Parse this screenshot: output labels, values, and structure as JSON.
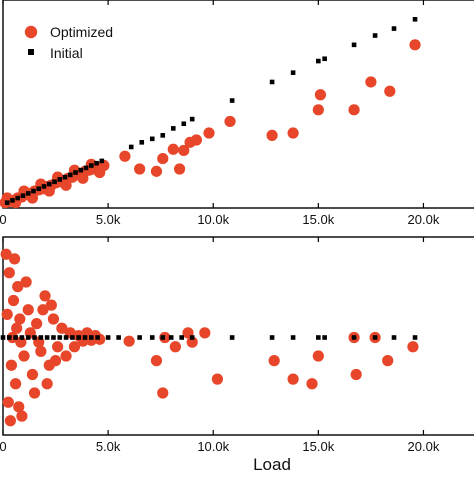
{
  "chart_data": [
    {
      "type": "scatter",
      "xlabel": "",
      "ylabel": "",
      "xlim": [
        0,
        22500
      ],
      "ylim": [
        0,
        1.2
      ],
      "xticks": [
        0,
        5000,
        10000,
        15000,
        20000
      ],
      "xtick_labels": [
        "0",
        "5.0k",
        "10.0k",
        "15.0k",
        "20.0k"
      ],
      "grid": false,
      "legend": {
        "placement": "top-left",
        "entries": [
          "Optimized",
          "Initial"
        ]
      },
      "colors": {
        "optimized": "#e8462a",
        "initial": "#000000"
      },
      "series": [
        {
          "name": "Optimized",
          "marker": "circle",
          "points": [
            [
              100,
              0.01
            ],
            [
              300,
              0.015
            ],
            [
              500,
              0.02
            ],
            [
              700,
              0.03
            ],
            [
              900,
              0.035
            ],
            [
              1100,
              0.045
            ],
            [
              1300,
              0.05
            ],
            [
              1500,
              0.06
            ],
            [
              1700,
              0.065
            ],
            [
              1900,
              0.07
            ],
            [
              2100,
              0.08
            ],
            [
              2300,
              0.085
            ],
            [
              2500,
              0.095
            ],
            [
              2700,
              0.1
            ],
            [
              2900,
              0.105
            ],
            [
              3100,
              0.115
            ],
            [
              3300,
              0.12
            ],
            [
              3500,
              0.13
            ],
            [
              3700,
              0.135
            ],
            [
              3900,
              0.145
            ],
            [
              4100,
              0.15
            ],
            [
              4300,
              0.155
            ],
            [
              4500,
              0.165
            ],
            [
              200,
              0.03
            ],
            [
              600,
              0.01
            ],
            [
              1000,
              0.06
            ],
            [
              1400,
              0.03
            ],
            [
              1800,
              0.09
            ],
            [
              2200,
              0.06
            ],
            [
              2600,
              0.12
            ],
            [
              3000,
              0.085
            ],
            [
              3400,
              0.15
            ],
            [
              3800,
              0.115
            ],
            [
              4200,
              0.175
            ],
            [
              4600,
              0.14
            ],
            [
              4800,
              0.17
            ],
            [
              5800,
              0.21
            ],
            [
              6500,
              0.155
            ],
            [
              7300,
              0.145
            ],
            [
              7600,
              0.2
            ],
            [
              8100,
              0.24
            ],
            [
              8600,
              0.235
            ],
            [
              8900,
              0.27
            ],
            [
              8400,
              0.155
            ],
            [
              9200,
              0.28
            ],
            [
              9800,
              0.31
            ],
            [
              10800,
              0.36
            ],
            [
              12800,
              0.3
            ],
            [
              13800,
              0.31
            ],
            [
              15000,
              0.41
            ],
            [
              15100,
              0.475
            ],
            [
              16700,
              0.41
            ],
            [
              17500,
              0.53
            ],
            [
              18400,
              0.49
            ],
            [
              19600,
              0.69
            ]
          ]
        },
        {
          "name": "Initial",
          "marker": "square",
          "points": [
            [
              200,
              0.01
            ],
            [
              450,
              0.02
            ],
            [
              700,
              0.03
            ],
            [
              950,
              0.04
            ],
            [
              1200,
              0.05
            ],
            [
              1450,
              0.06
            ],
            [
              1700,
              0.07
            ],
            [
              1950,
              0.08
            ],
            [
              2200,
              0.09
            ],
            [
              2450,
              0.1
            ],
            [
              2700,
              0.11
            ],
            [
              2950,
              0.12
            ],
            [
              3200,
              0.13
            ],
            [
              3450,
              0.14
            ],
            [
              3700,
              0.15
            ],
            [
              3950,
              0.16
            ],
            [
              4200,
              0.17
            ],
            [
              4450,
              0.18
            ],
            [
              4700,
              0.19
            ],
            [
              6100,
              0.25
            ],
            [
              6600,
              0.27
            ],
            [
              7100,
              0.285
            ],
            [
              7600,
              0.3
            ],
            [
              8100,
              0.33
            ],
            [
              8600,
              0.35
            ],
            [
              9000,
              0.37
            ],
            [
              10900,
              0.45
            ],
            [
              12800,
              0.53
            ],
            [
              13800,
              0.57
            ],
            [
              15000,
              0.62
            ],
            [
              15300,
              0.63
            ],
            [
              16700,
              0.69
            ],
            [
              17700,
              0.73
            ],
            [
              18600,
              0.76
            ],
            [
              19600,
              0.8
            ]
          ]
        }
      ]
    },
    {
      "type": "scatter",
      "xlabel": "Load",
      "ylabel": "",
      "xlim": [
        0,
        22500
      ],
      "ylim": [
        -1,
        1
      ],
      "xticks": [
        0,
        5000,
        10000,
        15000,
        20000
      ],
      "xtick_labels": [
        "0",
        "5.0k",
        "10.0k",
        "15.0k",
        "20.0k"
      ],
      "grid": false,
      "colors": {
        "optimized": "#e8462a",
        "initial": "#000000"
      },
      "series": [
        {
          "name": "Optimized",
          "marker": "circle",
          "points": [
            [
              300,
              0.7
            ],
            [
              500,
              0.4
            ],
            [
              200,
              0.25
            ],
            [
              800,
              0.2
            ],
            [
              400,
              -0.3
            ],
            [
              600,
              -0.5
            ],
            [
              250,
              -0.7
            ],
            [
              1000,
              -0.2
            ],
            [
              1200,
              0.3
            ],
            [
              1400,
              -0.4
            ],
            [
              1600,
              0.15
            ],
            [
              1800,
              -0.15
            ],
            [
              2000,
              0.45
            ],
            [
              2200,
              -0.3
            ],
            [
              2400,
              0.2
            ],
            [
              2600,
              -0.1
            ],
            [
              900,
              -0.85
            ],
            [
              1100,
              0.6
            ],
            [
              700,
              0.55
            ],
            [
              1500,
              -0.6
            ],
            [
              1900,
              0.3
            ],
            [
              2100,
              -0.5
            ],
            [
              2300,
              0.35
            ],
            [
              2500,
              -0.25
            ],
            [
              2800,
              0.1
            ],
            [
              3000,
              -0.2
            ],
            [
              3200,
              0.05
            ],
            [
              3400,
              -0.1
            ],
            [
              3600,
              0.02
            ],
            [
              3800,
              -0.04
            ],
            [
              4000,
              0.05
            ],
            [
              4200,
              -0.03
            ],
            [
              4400,
              0.02
            ],
            [
              4600,
              -0.02
            ],
            [
              150,
              0.9
            ],
            [
              350,
              -0.9
            ],
            [
              550,
              0.85
            ],
            [
              750,
              -0.75
            ],
            [
              450,
              0.0
            ],
            [
              650,
              0.1
            ],
            [
              850,
              -0.05
            ],
            [
              1300,
              0.05
            ],
            [
              1700,
              -0.05
            ],
            [
              6000,
              -0.04
            ],
            [
              7300,
              -0.25
            ],
            [
              7700,
              0.0
            ],
            [
              7600,
              -0.6
            ],
            [
              8200,
              -0.1
            ],
            [
              8800,
              0.05
            ],
            [
              9000,
              -0.05
            ],
            [
              9600,
              0.05
            ],
            [
              10200,
              -0.45
            ],
            [
              12900,
              -0.25
            ],
            [
              13800,
              -0.45
            ],
            [
              14700,
              -0.5
            ],
            [
              15000,
              -0.2
            ],
            [
              16700,
              0.0
            ],
            [
              16800,
              -0.4
            ],
            [
              17700,
              0.0
            ],
            [
              18300,
              -0.25
            ],
            [
              19500,
              -0.1
            ]
          ]
        },
        {
          "name": "Initial",
          "marker": "square",
          "points": [
            [
              0,
              0
            ],
            [
              300,
              0
            ],
            [
              600,
              0
            ],
            [
              900,
              0
            ],
            [
              1200,
              0
            ],
            [
              1500,
              0
            ],
            [
              1800,
              0
            ],
            [
              2100,
              0
            ],
            [
              2400,
              0
            ],
            [
              2700,
              0
            ],
            [
              3000,
              0
            ],
            [
              3300,
              0
            ],
            [
              3600,
              0
            ],
            [
              3900,
              0
            ],
            [
              4200,
              0
            ],
            [
              4500,
              0
            ],
            [
              5000,
              0
            ],
            [
              5500,
              0
            ],
            [
              6500,
              0
            ],
            [
              7100,
              0
            ],
            [
              7600,
              0
            ],
            [
              8000,
              0
            ],
            [
              8500,
              0
            ],
            [
              9000,
              0
            ],
            [
              10900,
              0
            ],
            [
              12800,
              0
            ],
            [
              13800,
              0
            ],
            [
              15000,
              0
            ],
            [
              15300,
              0
            ],
            [
              16700,
              0
            ],
            [
              17700,
              0
            ],
            [
              18600,
              0
            ],
            [
              19600,
              0
            ]
          ]
        }
      ]
    }
  ]
}
